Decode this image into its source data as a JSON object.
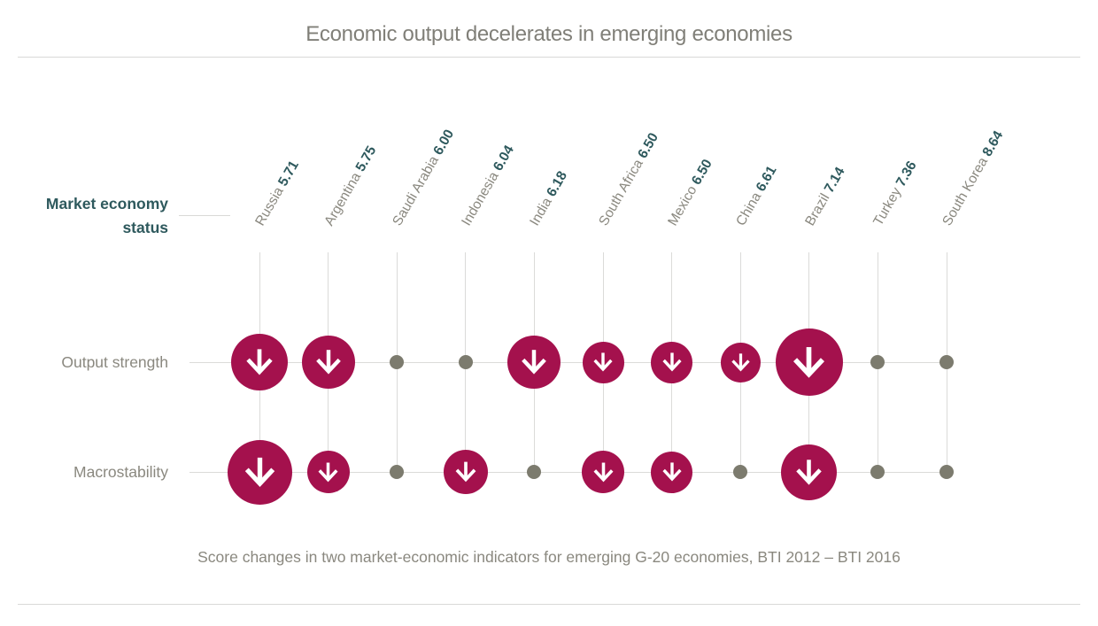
{
  "header": {
    "title": "Economic output decelerates in emerging economies"
  },
  "axis_group": {
    "line1": "Market economy",
    "line2": "status"
  },
  "caption": "Score changes in two market-economic indicators for emerging G-20 economies, BTI 2012 – BTI 2016",
  "chart_data": {
    "type": "dot-matrix",
    "title": "Economic output decelerates in emerging economies",
    "group_axis_label": "Market economy status",
    "categories": [
      {
        "name": "Russia",
        "score": "5.71"
      },
      {
        "name": "Argentina",
        "score": "5.75"
      },
      {
        "name": "Saudi Arabia",
        "score": "6.00"
      },
      {
        "name": "Indonesia",
        "score": "6.04"
      },
      {
        "name": "India",
        "score": "6.18"
      },
      {
        "name": "South Africa",
        "score": "6.50"
      },
      {
        "name": "Mexico",
        "score": "6.50"
      },
      {
        "name": "China",
        "score": "6.61"
      },
      {
        "name": "Brazil",
        "score": "7.14"
      },
      {
        "name": "Turkey",
        "score": "7.36"
      },
      {
        "name": "South Korea",
        "score": "8.64"
      }
    ],
    "rows": [
      {
        "label": "Output strength",
        "cells": [
          {
            "change": "decrease",
            "size": 64
          },
          {
            "change": "decrease",
            "size": 60
          },
          {
            "change": "none",
            "size": 16
          },
          {
            "change": "none",
            "size": 16
          },
          {
            "change": "decrease",
            "size": 60
          },
          {
            "change": "decrease",
            "size": 47
          },
          {
            "change": "decrease",
            "size": 47
          },
          {
            "change": "decrease",
            "size": 45
          },
          {
            "change": "decrease",
            "size": 76
          },
          {
            "change": "none",
            "size": 16
          },
          {
            "change": "none",
            "size": 16
          }
        ]
      },
      {
        "label": "Macrostability",
        "cells": [
          {
            "change": "decrease",
            "size": 73
          },
          {
            "change": "decrease",
            "size": 48
          },
          {
            "change": "none",
            "size": 16
          },
          {
            "change": "decrease",
            "size": 50
          },
          {
            "change": "none",
            "size": 16
          },
          {
            "change": "decrease",
            "size": 48
          },
          {
            "change": "decrease",
            "size": 47
          },
          {
            "change": "none",
            "size": 16
          },
          {
            "change": "decrease",
            "size": 63
          },
          {
            "change": "none",
            "size": 16
          },
          {
            "change": "none",
            "size": 16
          }
        ]
      }
    ],
    "colors": {
      "decrease_circle": "#a4114d",
      "no_change_dot": "#7c7b6e",
      "arrow": "#ffffff",
      "country_name_text": "#8a887f",
      "score_text": "#2e595d",
      "gridline": "#dbdbd9"
    }
  }
}
